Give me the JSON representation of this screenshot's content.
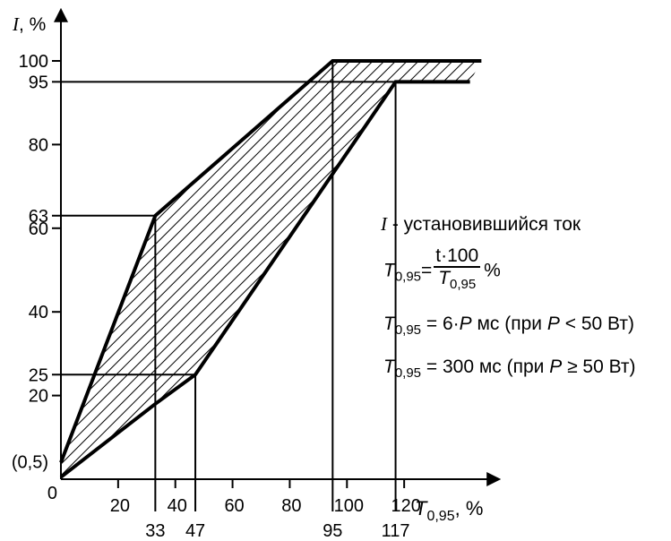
{
  "chart_data": {
    "type": "area",
    "title": "",
    "ylabel_symbol": "I",
    "ylabel_unit": ", %",
    "xlabel_symbol": "T",
    "xlabel_sub": "0,95",
    "xlabel_unit": ", %",
    "xlim": [
      0,
      140
    ],
    "ylim": [
      0,
      108
    ],
    "x_ticks": [
      {
        "value": 20,
        "label": "20"
      },
      {
        "value": 40,
        "label": "40"
      },
      {
        "value": 60,
        "label": "60"
      },
      {
        "value": 80,
        "label": "80"
      },
      {
        "value": 100,
        "label": "100"
      },
      {
        "value": 120,
        "label": "120"
      }
    ],
    "x_marks": [
      {
        "value": 33,
        "label": "33",
        "y_top": 63
      },
      {
        "value": 47,
        "label": "47",
        "y_top": 25
      },
      {
        "value": 95,
        "label": "95",
        "y_top": 100
      },
      {
        "value": 117,
        "label": "117",
        "y_top": 95
      }
    ],
    "y_ticks": [
      {
        "value": 20,
        "label": "20"
      },
      {
        "value": 40,
        "label": "40"
      },
      {
        "value": 60,
        "label": "60"
      },
      {
        "value": 80,
        "label": "80"
      },
      {
        "value": 100,
        "label": "100"
      }
    ],
    "y_marks": [
      {
        "value": 0.5,
        "label": "(0,5)"
      },
      {
        "value": 25,
        "label": "25",
        "x_right": 47
      },
      {
        "value": 63,
        "label": "63",
        "x_right": 33
      },
      {
        "value": 95,
        "label": "95",
        "x_right": 143
      }
    ],
    "origin_label": "0",
    "upper_boundary": [
      [
        0,
        4
      ],
      [
        33,
        63
      ],
      [
        95,
        100
      ],
      [
        147,
        100
      ]
    ],
    "lower_boundary": [
      [
        0,
        0.5
      ],
      [
        33,
        18
      ],
      [
        47,
        25
      ],
      [
        117,
        95
      ],
      [
        143,
        95
      ]
    ]
  },
  "legend": {
    "line1_symbol": "I",
    "line1_text": " - установившийся ток",
    "line2_T": "T",
    "line2_sub": "0,95",
    "line2_eq": "=",
    "line2_num": "t·100",
    "line2_den_T": "T",
    "line2_den_sub": "0,95",
    "line2_unit": "%",
    "line3_T": "T",
    "line3_sub": "0,95",
    "line3_eq": " = 6·",
    "line3_P": "P",
    "line3_rest_a": " мс (при ",
    "line3_P2": "P",
    "line3_rest_b": " < 50 Вт)",
    "line4_T": "T",
    "line4_sub": "0,95",
    "line4_eq": " = 300 мс (при ",
    "line4_P": "P",
    "line4_rest": " ≥ 50 Вт)"
  }
}
